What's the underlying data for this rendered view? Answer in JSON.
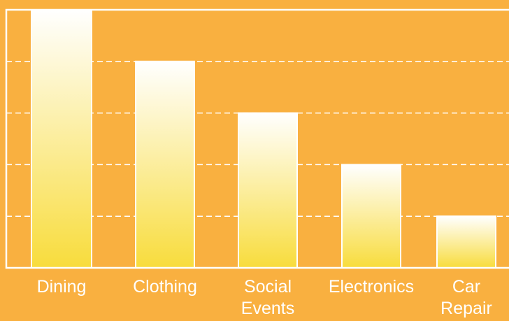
{
  "chart_data": {
    "type": "bar",
    "categories": [
      "Dining",
      "Clothing",
      "Social Events",
      "Electronics",
      "Car Repair"
    ],
    "category_lines": [
      [
        "Dining"
      ],
      [
        "Clothing"
      ],
      [
        "Social",
        "Events"
      ],
      [
        "Electronics"
      ],
      [
        "Car",
        "Repair"
      ]
    ],
    "values": [
      5,
      4,
      3,
      2,
      1
    ],
    "ylim": [
      0,
      5
    ],
    "grid": true,
    "title": "",
    "xlabel": "",
    "ylabel": "",
    "colors": {
      "background": "#F9B040",
      "bar_top": "#FFFFFF",
      "bar_bottom": "#F8DC3C",
      "bar_stroke": "#FFFFFF",
      "grid": "#FFFFFF",
      "frame": "#FFFFFF"
    }
  }
}
